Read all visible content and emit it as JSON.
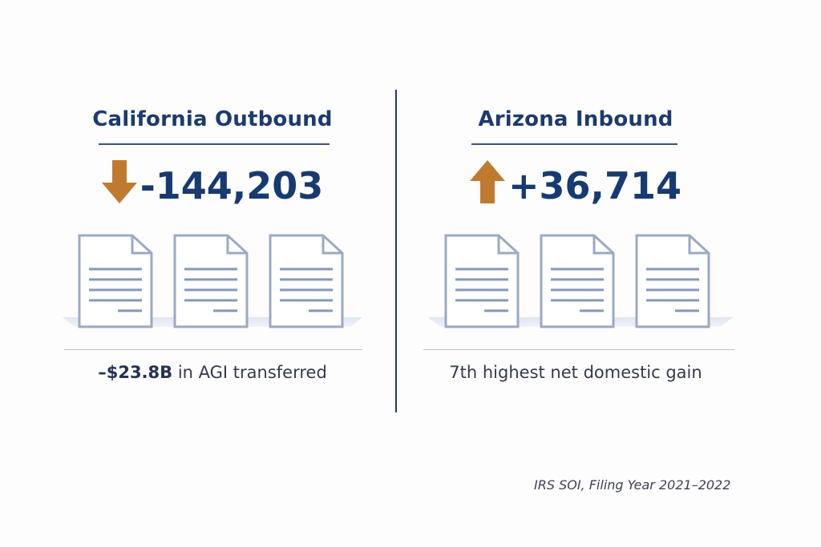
{
  "left": {
    "title": "California Outbound",
    "direction_icon": "arrow-down-icon",
    "value": "-144,203",
    "note_bold": "–$23.8B",
    "note_rest": " in AGI transferred",
    "documents": 3
  },
  "right": {
    "title": "Arizona Inbound",
    "direction_icon": "arrow-up-icon",
    "value": "+36,714",
    "note": "7th highest net domestic gain",
    "documents": 3
  },
  "source": "IRS SOI, Filing Year 2021–2022",
  "colors": {
    "navy": "#1d3a6e",
    "arrow": "#c07a30",
    "doc_stroke": "#9aaac4",
    "doc_lines": "#8597b8"
  }
}
